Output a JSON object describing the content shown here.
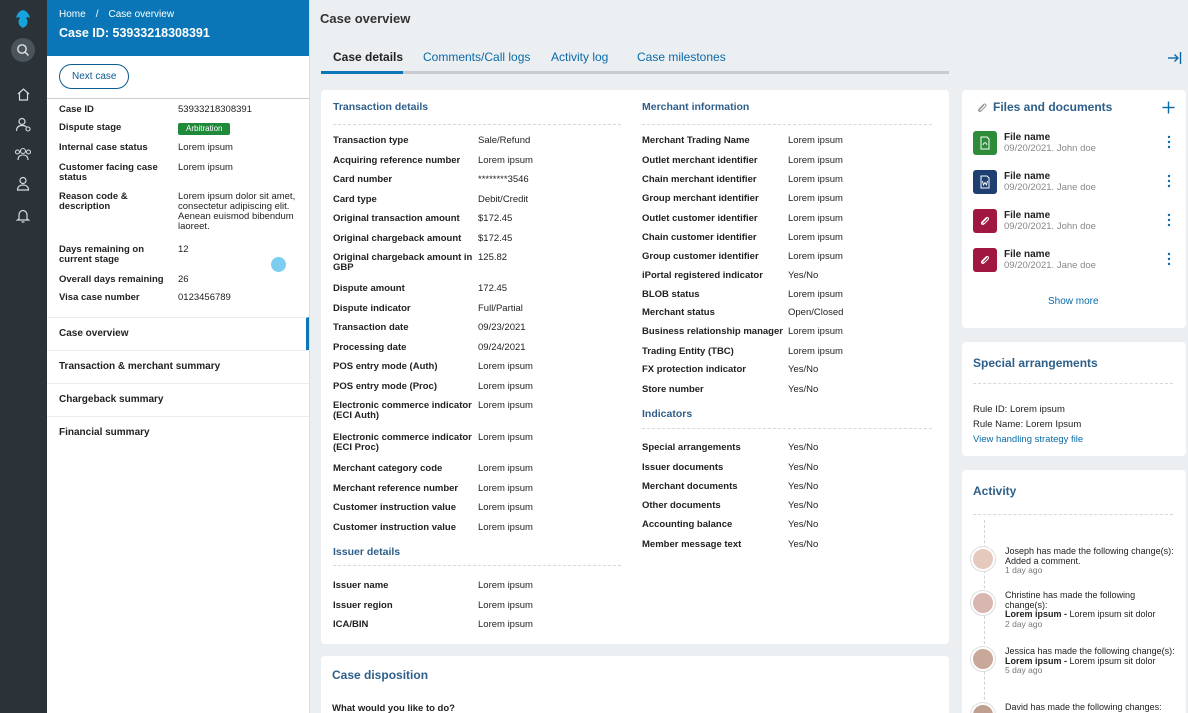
{
  "breadcrumb": [
    "Home",
    "/",
    "Case overview"
  ],
  "case_title": "Case ID: 53933218308391",
  "next_case": "Next case",
  "case_fields": [
    {
      "k": "Case ID",
      "v": "53933218308391"
    },
    {
      "k": "Dispute stage",
      "v": "Arbitration"
    },
    {
      "k": "Internal case status",
      "v": "Lorem ipsum"
    },
    {
      "k": "Customer facing case status",
      "v": "Lorem ipsum"
    },
    {
      "k": "Reason code & description",
      "v": "Lorem ipsum dolor sit amet, consectetur adipiscing elit. Aenean euismod bibendum laoreet."
    },
    {
      "k": "Days remaining on current stage",
      "v": "12"
    },
    {
      "k": "Overall days remaining",
      "v": "26"
    },
    {
      "k": "Visa case number",
      "v": "0123456789"
    }
  ],
  "nav": [
    "Case overview",
    "Transaction & merchant summary",
    "Chargeback summary",
    "Financial summary"
  ],
  "page_title": "Case overview",
  "tabs": [
    "Case details",
    "Comments/Call logs",
    "Activity log",
    "Case milestones"
  ],
  "transaction": {
    "title": "Transaction details",
    "rows": [
      {
        "k": "Transaction type",
        "v": "Sale/Refund"
      },
      {
        "k": "Acquiring reference number",
        "v": "Lorem ipsum"
      },
      {
        "k": "Card number",
        "v": "********3546"
      },
      {
        "k": "Card type",
        "v": "Debit/Credit"
      },
      {
        "k": "Original transaction amount",
        "v": "$172.45"
      },
      {
        "k": "Original chargeback amount",
        "v": "$172.45"
      },
      {
        "k": "Original chargeback amount in GBP",
        "v": "125.82"
      },
      {
        "k": "Dispute amount",
        "v": "172.45"
      },
      {
        "k": "Dispute indicator",
        "v": "Full/Partial"
      },
      {
        "k": "Transaction date",
        "v": "09/23/2021"
      },
      {
        "k": "Processing date",
        "v": "09/24/2021"
      },
      {
        "k": "POS entry mode (Auth)",
        "v": "Lorem ipsum"
      },
      {
        "k": "POS entry mode (Proc)",
        "v": "Lorem ipsum"
      },
      {
        "k": "Electronic commerce indicator (ECI Auth)",
        "v": "Lorem ipsum"
      },
      {
        "k": "Electronic commerce indicator (ECI Proc)",
        "v": "Lorem ipsum"
      },
      {
        "k": "Merchant category code",
        "v": "Lorem ipsum"
      },
      {
        "k": "Merchant reference number",
        "v": "Lorem ipsum"
      },
      {
        "k": "Customer instruction value",
        "v": "Lorem ipsum"
      },
      {
        "k": "Customer instruction value",
        "v": "Lorem ipsum"
      }
    ]
  },
  "issuer": {
    "title": "Issuer details",
    "rows": [
      {
        "k": "Issuer name",
        "v": "Lorem ipsum"
      },
      {
        "k": "Issuer region",
        "v": "Lorem ipsum"
      },
      {
        "k": "ICA/BIN",
        "v": "Lorem ipsum"
      }
    ]
  },
  "merchant": {
    "title": "Merchant information",
    "rows": [
      {
        "k": "Merchant Trading Name",
        "v": "Lorem ipsum"
      },
      {
        "k": "Outlet merchant identifier",
        "v": "Lorem ipsum"
      },
      {
        "k": "Chain merchant identifier",
        "v": "Lorem ipsum"
      },
      {
        "k": "Group merchant identifier",
        "v": "Lorem ipsum"
      },
      {
        "k": "Outlet customer identifier",
        "v": "Lorem ipsum"
      },
      {
        "k": "Chain customer identifier",
        "v": "Lorem ipsum"
      },
      {
        "k": "Group customer identifier",
        "v": "Lorem ipsum"
      },
      {
        "k": "iPortal registered indicator",
        "v": "Yes/No"
      },
      {
        "k": "BLOB status",
        "v": "Lorem ipsum"
      },
      {
        "k": "Merchant status",
        "v": "Open/Closed"
      },
      {
        "k": "Business relationship manager",
        "v": "Lorem ipsum"
      },
      {
        "k": "Trading Entity (TBC)",
        "v": "Lorem ipsum"
      },
      {
        "k": "FX protection indicator",
        "v": "Yes/No"
      },
      {
        "k": "Store number",
        "v": "Yes/No"
      }
    ]
  },
  "indicators": {
    "title": "Indicators",
    "rows": [
      {
        "k": "Special arrangements",
        "v": "Yes/No"
      },
      {
        "k": "Issuer documents",
        "v": "Yes/No"
      },
      {
        "k": "Merchant documents",
        "v": "Yes/No"
      },
      {
        "k": "Other documents",
        "v": "Yes/No"
      },
      {
        "k": "Accounting balance",
        "v": "Yes/No"
      },
      {
        "k": "Member message text",
        "v": "Yes/No"
      }
    ]
  },
  "disposition": {
    "title": "Case disposition",
    "question": "What would you like to do?"
  },
  "files": {
    "title": "Files and documents",
    "items": [
      {
        "name": "File name",
        "meta": "09/20/2021. John doe",
        "icon": "pdf-icon",
        "color": "#2e8b3a"
      },
      {
        "name": "File name",
        "meta": "09/20/2021. Jane doe",
        "icon": "word-icon",
        "color": "#1d3f72"
      },
      {
        "name": "File name",
        "meta": "09/20/2021. John doe",
        "icon": "attachment-icon",
        "color": "#a0173f"
      },
      {
        "name": "File name",
        "meta": "09/20/2021. Jane doe",
        "icon": "attachment-icon",
        "color": "#a0173f"
      }
    ],
    "show_more": "Show more"
  },
  "special": {
    "title": "Special arrangements",
    "rule_id": "Rule ID: Lorem ipsum",
    "rule_name": "Rule Name: Lorem Ipsum",
    "link": "View handling strategy file"
  },
  "activity": {
    "title": "Activity",
    "items": [
      {
        "line1": "Joseph has made the following change(s): Added a comment.",
        "bold": "",
        "rest": "",
        "ago": "1 day ago"
      },
      {
        "line1": "Christine has made the following change(s):",
        "bold": "Lorem ipsum -",
        "rest": " Lorem ipsum sit dolor",
        "ago": "2 day ago"
      },
      {
        "line1": "Jessica has made the following change(s):",
        "bold": "Lorem ipsum -",
        "rest": " Lorem ipsum sit dolor",
        "ago": "5 day ago"
      },
      {
        "line1": "David has made the following changes:",
        "bold": "",
        "rest": "",
        "ago": ""
      }
    ]
  }
}
